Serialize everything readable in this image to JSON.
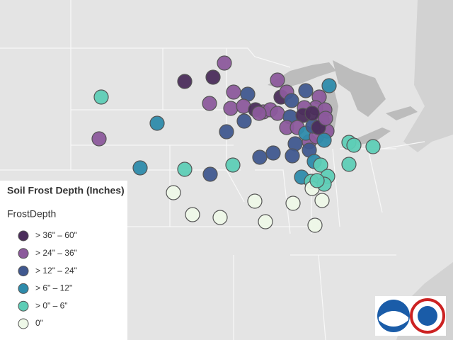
{
  "legend": {
    "title": "Soil Frost Depth (Inches)",
    "field": "FrostDepth",
    "items": [
      {
        "label": "> 36\" – 60\"",
        "color": "#4b2d5b"
      },
      {
        "label": "> 24\" – 36\"",
        "color": "#8c5a9c"
      },
      {
        "label": "> 12\" – 24\"",
        "color": "#40588f"
      },
      {
        "label": "> 6\" – 12\"",
        "color": "#2e8bab"
      },
      {
        "label": "> 0\" – 6\"",
        "color": "#5ecdb6"
      },
      {
        "label": "0\"",
        "color": "#eef8e8"
      }
    ]
  }
}
